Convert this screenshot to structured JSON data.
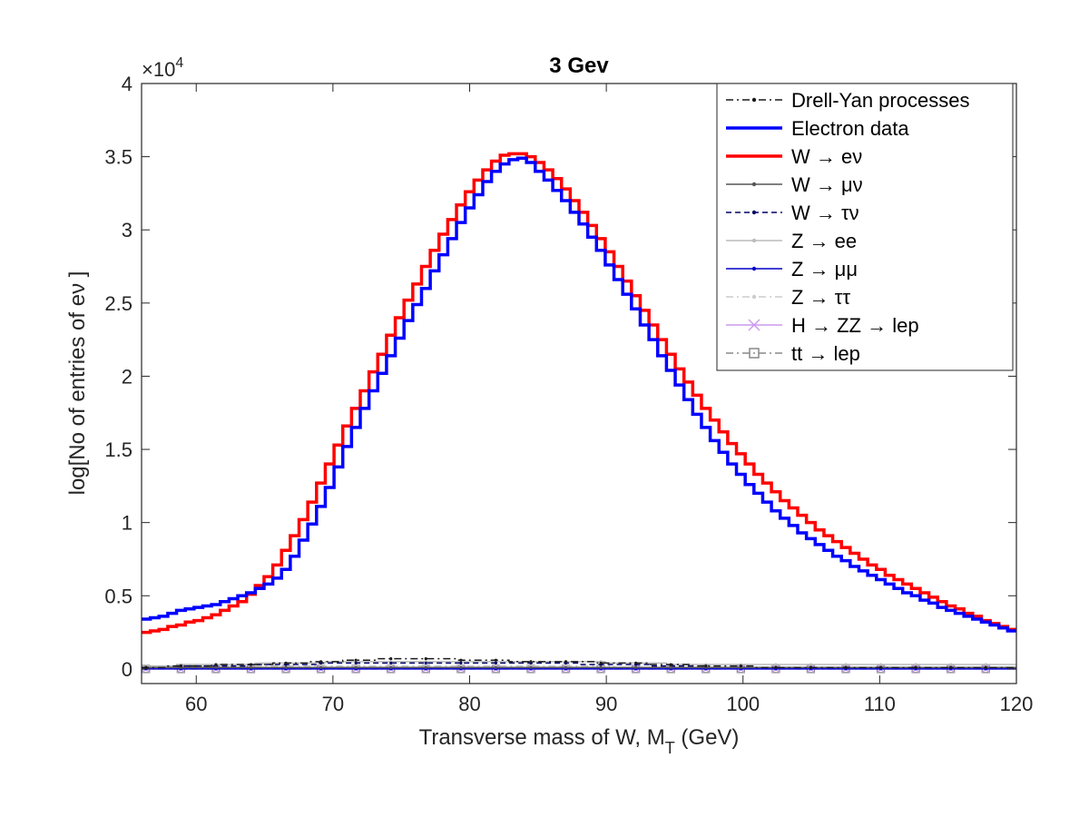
{
  "chart_data": {
    "type": "line",
    "title": "3 Gev",
    "xlabel": "Transverse mass of W, M",
    "xlabel_sub": "T",
    "xlabel_unit": "(GeV)",
    "ylabel": "log[No of entries of eν ]",
    "y_exponent_base": "×10",
    "y_exponent_power": "4",
    "xlim": [
      56,
      120
    ],
    "ylim": [
      -0.1,
      4
    ],
    "x_ticks": [
      60,
      70,
      80,
      90,
      100,
      110,
      120
    ],
    "y_ticks": [
      0,
      0.5,
      1,
      1.5,
      2,
      2.5,
      3,
      3.5,
      4
    ],
    "y_tick_labels": [
      "0",
      "0.5",
      "1",
      "1.5",
      "2",
      "2.5",
      "3",
      "3.5",
      "4"
    ],
    "grid": false,
    "legend_position": "top-right",
    "bin_edges_start": 56,
    "bin_width": 0.64,
    "series": [
      {
        "name": "Electron data",
        "color": "#0000ff",
        "legend_style": "solid-thick",
        "values": [
          0.34,
          0.35,
          0.36,
          0.38,
          0.4,
          0.41,
          0.42,
          0.43,
          0.44,
          0.46,
          0.48,
          0.5,
          0.52,
          0.55,
          0.58,
          0.62,
          0.68,
          0.77,
          0.88,
          0.99,
          1.11,
          1.24,
          1.38,
          1.52,
          1.65,
          1.78,
          1.9,
          2.02,
          2.14,
          2.26,
          2.38,
          2.49,
          2.6,
          2.72,
          2.83,
          2.94,
          3.05,
          3.15,
          3.24,
          3.33,
          3.4,
          3.45,
          3.48,
          3.49,
          3.46,
          3.4,
          3.34,
          3.27,
          3.2,
          3.12,
          3.04,
          2.95,
          2.86,
          2.76,
          2.66,
          2.56,
          2.46,
          2.35,
          2.25,
          2.14,
          2.04,
          1.94,
          1.84,
          1.74,
          1.65,
          1.56,
          1.48,
          1.4,
          1.33,
          1.26,
          1.2,
          1.14,
          1.08,
          1.03,
          0.98,
          0.93,
          0.89,
          0.85,
          0.81,
          0.77,
          0.74,
          0.7,
          0.67,
          0.64,
          0.61,
          0.58,
          0.55,
          0.52,
          0.5,
          0.47,
          0.45,
          0.42,
          0.4,
          0.38,
          0.36,
          0.34,
          0.32,
          0.3,
          0.28,
          0.26
        ]
      },
      {
        "name": "W → eν",
        "color": "#ff0000",
        "legend_style": "solid-thick",
        "values": [
          0.25,
          0.26,
          0.27,
          0.29,
          0.3,
          0.32,
          0.33,
          0.35,
          0.37,
          0.4,
          0.43,
          0.46,
          0.51,
          0.57,
          0.63,
          0.71,
          0.81,
          0.91,
          1.02,
          1.14,
          1.27,
          1.4,
          1.53,
          1.66,
          1.78,
          1.9,
          2.03,
          2.15,
          2.28,
          2.4,
          2.52,
          2.63,
          2.75,
          2.86,
          2.97,
          3.07,
          3.17,
          3.26,
          3.34,
          3.41,
          3.47,
          3.51,
          3.52,
          3.52,
          3.5,
          3.46,
          3.41,
          3.35,
          3.28,
          3.2,
          3.12,
          3.03,
          2.94,
          2.85,
          2.75,
          2.65,
          2.55,
          2.45,
          2.35,
          2.25,
          2.15,
          2.05,
          1.96,
          1.87,
          1.78,
          1.7,
          1.62,
          1.54,
          1.47,
          1.4,
          1.33,
          1.27,
          1.21,
          1.15,
          1.1,
          1.05,
          1.0,
          0.95,
          0.91,
          0.87,
          0.83,
          0.79,
          0.75,
          0.71,
          0.68,
          0.64,
          0.61,
          0.58,
          0.55,
          0.52,
          0.49,
          0.46,
          0.43,
          0.41,
          0.38,
          0.36,
          0.33,
          0.31,
          0.29,
          0.27
        ]
      },
      {
        "name": "Drell-Yan processes",
        "color": "#1a1a1a",
        "legend_style": "dashdot-dot",
        "values": [
          0.01,
          0.01,
          0.01,
          0.02,
          0.02,
          0.02,
          0.02,
          0.02,
          0.03,
          0.03,
          0.03,
          0.03,
          0.03,
          0.03,
          0.03,
          0.04,
          0.04,
          0.04,
          0.04,
          0.05,
          0.05,
          0.05,
          0.05,
          0.06,
          0.06,
          0.06,
          0.06,
          0.07,
          0.07,
          0.07,
          0.07,
          0.07,
          0.07,
          0.07,
          0.07,
          0.07,
          0.06,
          0.06,
          0.06,
          0.06,
          0.06,
          0.06,
          0.05,
          0.05,
          0.05,
          0.05,
          0.05,
          0.05,
          0.05,
          0.05,
          0.05,
          0.05,
          0.04,
          0.04,
          0.04,
          0.04,
          0.04,
          0.04,
          0.03,
          0.03,
          0.03,
          0.03,
          0.03,
          0.02,
          0.02,
          0.02,
          0.02,
          0.02,
          0.02,
          0.02,
          0.01,
          0.01,
          0.01,
          0.01,
          0.01,
          0.01,
          0.01,
          0.01,
          0.01,
          0.01,
          0.01,
          0.01,
          0.01,
          0.01,
          0.01,
          0.01,
          0.01,
          0.01,
          0.01,
          0.01,
          0.01,
          0.01,
          0.01,
          0.01,
          0.01,
          0.01,
          0.01,
          0.01,
          0.01,
          0.01
        ]
      },
      {
        "name": "W → μν",
        "color": "#555555",
        "legend_style": "solid-dot",
        "values": [
          0.01,
          0.01,
          0.01,
          0.01,
          0.01,
          0.01,
          0.01,
          0.01,
          0.01,
          0.01,
          0.01,
          0.01,
          0.01,
          0.01,
          0.01,
          0.01,
          0.01,
          0.01,
          0.01,
          0.01,
          0.01,
          0.01,
          0.01,
          0.01,
          0.01,
          0.01,
          0.01,
          0.01,
          0.01,
          0.01,
          0.01,
          0.01,
          0.01,
          0.01,
          0.01,
          0.01,
          0.01,
          0.01,
          0.01,
          0.01,
          0.01,
          0.01,
          0.01,
          0.01,
          0.01,
          0.01,
          0.01,
          0.01,
          0.01,
          0.01,
          0.01,
          0.01,
          0.01,
          0.01,
          0.01,
          0.01,
          0.01,
          0.01,
          0.01,
          0.01,
          0.01,
          0.01,
          0.01,
          0.01,
          0.01,
          0.01,
          0.01,
          0.01,
          0.01,
          0.01,
          0.01,
          0.01,
          0.01,
          0.01,
          0.01,
          0.01,
          0.01,
          0.01,
          0.01,
          0.01,
          0.01,
          0.01,
          0.01,
          0.01,
          0.01,
          0.01,
          0.01,
          0.01,
          0.01,
          0.01,
          0.01,
          0.01,
          0.01,
          0.01,
          0.01,
          0.01,
          0.01,
          0.01,
          0.01,
          0.01
        ]
      },
      {
        "name": "W → τν",
        "color": "#000066",
        "legend_style": "dashed-dot",
        "values": [
          0.01,
          0.01,
          0.01,
          0.01,
          0.02,
          0.02,
          0.02,
          0.02,
          0.02,
          0.02,
          0.02,
          0.02,
          0.03,
          0.03,
          0.03,
          0.03,
          0.03,
          0.03,
          0.03,
          0.03,
          0.04,
          0.04,
          0.04,
          0.04,
          0.04,
          0.04,
          0.04,
          0.04,
          0.04,
          0.04,
          0.04,
          0.04,
          0.04,
          0.04,
          0.04,
          0.04,
          0.04,
          0.04,
          0.04,
          0.04,
          0.04,
          0.04,
          0.04,
          0.04,
          0.04,
          0.04,
          0.04,
          0.04,
          0.04,
          0.04,
          0.03,
          0.03,
          0.03,
          0.03,
          0.03,
          0.03,
          0.03,
          0.03,
          0.02,
          0.02,
          0.02,
          0.02,
          0.02,
          0.01,
          0.01,
          0.01,
          0.01,
          0.01,
          0.01,
          0.01,
          0.01,
          0.01,
          0.01,
          0.01,
          0.01,
          0.01,
          0.01,
          0.01,
          0.01,
          0.01,
          0.01,
          0.01,
          0.01,
          0.01,
          0.01,
          0.01,
          0.01,
          0.01,
          0.01,
          0.01,
          0.01,
          0.01,
          0.01,
          0.01,
          0.01,
          0.01,
          0.01,
          0.01,
          0.01,
          0.01
        ]
      },
      {
        "name": "Z → ee",
        "color": "#bbbbbb",
        "legend_style": "solid-dot",
        "values": [
          0.02,
          0.02,
          0.02,
          0.02,
          0.03,
          0.03,
          0.03,
          0.03,
          0.03,
          0.03,
          0.03,
          0.03,
          0.03,
          0.04,
          0.04,
          0.04,
          0.04,
          0.04,
          0.04,
          0.04,
          0.04,
          0.05,
          0.05,
          0.05,
          0.05,
          0.05,
          0.05,
          0.05,
          0.05,
          0.05,
          0.05,
          0.05,
          0.05,
          0.05,
          0.05,
          0.05,
          0.05,
          0.05,
          0.05,
          0.05,
          0.05,
          0.05,
          0.05,
          0.05,
          0.05,
          0.05,
          0.05,
          0.05,
          0.05,
          0.05,
          0.05,
          0.05,
          0.05,
          0.04,
          0.04,
          0.04,
          0.04,
          0.04,
          0.04,
          0.04,
          0.03,
          0.03,
          0.03,
          0.03,
          0.03,
          0.03,
          0.03,
          0.03,
          0.03,
          0.03,
          0.03,
          0.03,
          0.03,
          0.03,
          0.03,
          0.03,
          0.03,
          0.03,
          0.03,
          0.03,
          0.03,
          0.03,
          0.03,
          0.03,
          0.03,
          0.03,
          0.03,
          0.03,
          0.03,
          0.03,
          0.03,
          0.03,
          0.03,
          0.03,
          0.03,
          0.03,
          0.03,
          0.03,
          0.03,
          0.03
        ]
      },
      {
        "name": "Z → μμ",
        "color": "#0000cc",
        "legend_style": "solid-dot",
        "values": [
          0.0,
          0.0,
          0.0,
          0.0,
          0.0,
          0.0,
          0.0,
          0.0,
          0.0,
          0.0,
          0.0,
          0.0,
          0.0,
          0.0,
          0.0,
          0.0,
          0.0,
          0.0,
          0.0,
          0.0,
          0.0,
          0.0,
          0.0,
          0.0,
          0.0,
          0.0,
          0.0,
          0.0,
          0.0,
          0.0,
          0.0,
          0.0,
          0.0,
          0.0,
          0.0,
          0.0,
          0.0,
          0.0,
          0.0,
          0.0,
          0.0,
          0.0,
          0.0,
          0.0,
          0.0,
          0.0,
          0.0,
          0.0,
          0.0,
          0.0,
          0.0,
          0.0,
          0.0,
          0.0,
          0.0,
          0.0,
          0.0,
          0.0,
          0.0,
          0.0,
          0.0,
          0.0,
          0.0,
          0.0,
          0.0,
          0.0,
          0.0,
          0.0,
          0.0,
          0.0,
          0.0,
          0.0,
          0.0,
          0.0,
          0.0,
          0.0,
          0.0,
          0.0,
          0.0,
          0.0,
          0.0,
          0.0,
          0.0,
          0.0,
          0.0,
          0.0,
          0.0,
          0.0,
          0.0,
          0.0,
          0.0,
          0.0,
          0.0,
          0.0,
          0.0,
          0.0,
          0.0,
          0.0,
          0.0,
          0.0
        ]
      },
      {
        "name": "Z → ττ",
        "color": "#cccccc",
        "legend_style": "dashdot-dot",
        "values": [
          0.01,
          0.01,
          0.01,
          0.01,
          0.01,
          0.01,
          0.01,
          0.01,
          0.01,
          0.02,
          0.02,
          0.02,
          0.02,
          0.02,
          0.02,
          0.02,
          0.02,
          0.02,
          0.02,
          0.02,
          0.02,
          0.02,
          0.02,
          0.02,
          0.02,
          0.02,
          0.02,
          0.02,
          0.02,
          0.02,
          0.02,
          0.02,
          0.02,
          0.02,
          0.02,
          0.02,
          0.02,
          0.02,
          0.02,
          0.02,
          0.02,
          0.02,
          0.02,
          0.02,
          0.02,
          0.02,
          0.02,
          0.02,
          0.02,
          0.02,
          0.02,
          0.02,
          0.02,
          0.02,
          0.01,
          0.01,
          0.01,
          0.01,
          0.01,
          0.01,
          0.01,
          0.01,
          0.01,
          0.01,
          0.01,
          0.01,
          0.01,
          0.01,
          0.01,
          0.01,
          0.01,
          0.01,
          0.01,
          0.01,
          0.01,
          0.01,
          0.01,
          0.01,
          0.01,
          0.01,
          0.01,
          0.01,
          0.01,
          0.01,
          0.01,
          0.01,
          0.01,
          0.01,
          0.01,
          0.01,
          0.01,
          0.01,
          0.01,
          0.01,
          0.01,
          0.01,
          0.01,
          0.01,
          0.01,
          0.01
        ]
      },
      {
        "name": "H → ZZ → lep",
        "color": "#cc99ee",
        "legend_style": "solid-x",
        "values": [
          0.0,
          0.0,
          0.0,
          0.0,
          0.0,
          0.0,
          0.0,
          0.0,
          0.0,
          0.0,
          0.0,
          0.0,
          0.0,
          0.0,
          0.0,
          0.0,
          0.0,
          0.0,
          0.0,
          0.0,
          0.0,
          0.0,
          0.0,
          0.0,
          0.0,
          0.0,
          0.0,
          0.0,
          0.0,
          0.0,
          0.0,
          0.0,
          0.0,
          0.0,
          0.0,
          0.0,
          0.0,
          0.0,
          0.0,
          0.0,
          0.0,
          0.0,
          0.0,
          0.0,
          0.0,
          0.0,
          0.0,
          0.0,
          0.0,
          0.0,
          0.0,
          0.0,
          0.0,
          0.0,
          0.0,
          0.0,
          0.0,
          0.0,
          0.0,
          0.0,
          0.0,
          0.0,
          0.0,
          0.0,
          0.0,
          0.0,
          0.0,
          0.0,
          0.0,
          0.0,
          0.0,
          0.0,
          0.0,
          0.0,
          0.0,
          0.0,
          0.0,
          0.0,
          0.0,
          0.0,
          0.0,
          0.0,
          0.0,
          0.0,
          0.0,
          0.0,
          0.0,
          0.0,
          0.0,
          0.0,
          0.0,
          0.0,
          0.0,
          0.0,
          0.0,
          0.0,
          0.0,
          0.0,
          0.0,
          0.0
        ]
      },
      {
        "name": "tt → lep",
        "color": "#888888",
        "legend_style": "dashdot-square",
        "values": [
          0.0,
          0.0,
          0.0,
          0.0,
          0.0,
          0.0,
          0.0,
          0.0,
          0.0,
          0.0,
          0.0,
          0.0,
          0.0,
          0.0,
          0.0,
          0.0,
          0.0,
          0.0,
          0.0,
          0.0,
          0.0,
          0.0,
          0.0,
          0.0,
          0.0,
          0.0,
          0.0,
          0.0,
          0.0,
          0.0,
          0.0,
          0.0,
          0.0,
          0.0,
          0.0,
          0.0,
          0.0,
          0.0,
          0.0,
          0.0,
          0.0,
          0.0,
          0.0,
          0.0,
          0.0,
          0.0,
          0.0,
          0.0,
          0.0,
          0.0,
          0.0,
          0.0,
          0.0,
          0.0,
          0.0,
          0.0,
          0.0,
          0.0,
          0.0,
          0.0,
          0.0,
          0.0,
          0.0,
          0.0,
          0.0,
          0.0,
          0.0,
          0.0,
          0.0,
          0.0,
          0.0,
          0.0,
          0.0,
          0.0,
          0.0,
          0.0,
          0.0,
          0.0,
          0.0,
          0.0,
          0.0,
          0.0,
          0.0,
          0.0,
          0.0,
          0.0,
          0.0,
          0.0,
          0.0,
          0.0,
          0.0,
          0.0,
          0.0,
          0.0,
          0.0,
          0.0,
          0.0,
          0.0,
          0.0,
          0.0
        ]
      }
    ],
    "legend_order": [
      "Drell-Yan processes",
      "Electron data",
      "W → eν",
      "W → μν",
      "W → τν",
      "Z → ee",
      "Z → μμ",
      "Z → ττ",
      "H → ZZ → lep",
      "tt → lep"
    ]
  }
}
